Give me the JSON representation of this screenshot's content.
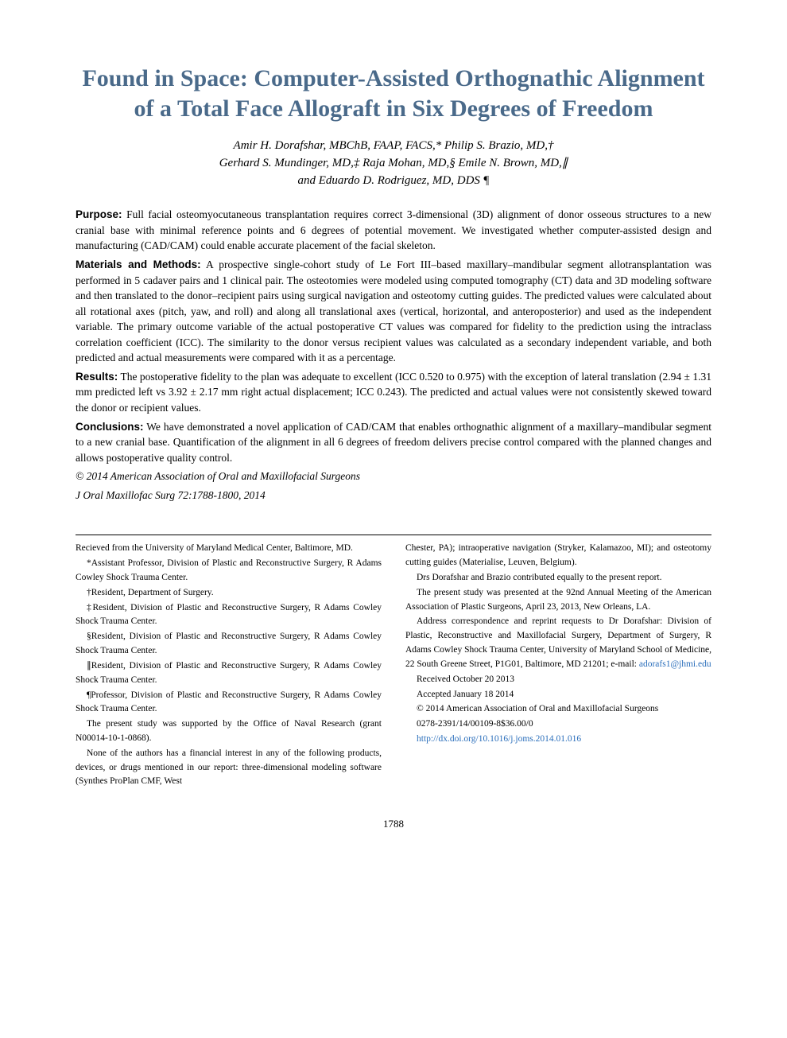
{
  "title": "Found in Space: Computer-Assisted Orthognathic Alignment of a Total Face Allograft in Six Degrees of Freedom",
  "authors_line1": "Amir H. Dorafshar, MBChB, FAAP, FACS,* Philip S. Brazio, MD,†",
  "authors_line2": "Gerhard S. Mundinger, MD,‡ Raja Mohan, MD,§ Emile N. Brown, MD,∥",
  "authors_line3": "and Eduardo D. Rodriguez, MD, DDS ¶",
  "abstract": {
    "purpose_label": "Purpose:",
    "purpose_text": "Full facial osteomyocutaneous transplantation requires correct 3-dimensional (3D) alignment of donor osseous structures to a new cranial base with minimal reference points and 6 degrees of potential movement. We investigated whether computer-assisted design and manufacturing (CAD/CAM) could enable accurate placement of the facial skeleton.",
    "methods_label": "Materials and Methods:",
    "methods_text": "A prospective single-cohort study of Le Fort III–based maxillary–mandibular segment allotransplantation was performed in 5 cadaver pairs and 1 clinical pair. The osteotomies were modeled using computed tomography (CT) data and 3D modeling software and then translated to the donor–recipient pairs using surgical navigation and osteotomy cutting guides. The predicted values were calculated about all rotational axes (pitch, yaw, and roll) and along all translational axes (vertical, horizontal, and anteroposterior) and used as the independent variable. The primary outcome variable of the actual postoperative CT values was compared for fidelity to the prediction using the intraclass correlation coefficient (ICC). The similarity to the donor versus recipient values was calculated as a secondary independent variable, and both predicted and actual measurements were compared with it as a percentage.",
    "results_label": "Results:",
    "results_text": "The postoperative fidelity to the plan was adequate to excellent (ICC 0.520 to 0.975) with the exception of lateral translation (2.94 ± 1.31 mm predicted left vs 3.92 ± 2.17 mm right actual displacement; ICC 0.243). The predicted and actual values were not consistently skewed toward the donor or recipient values.",
    "conclusions_label": "Conclusions:",
    "conclusions_text": "We have demonstrated a novel application of CAD/CAM that enables orthognathic alignment of a maxillary–mandibular segment to a new cranial base. Quantification of the alignment in all 6 degrees of freedom delivers precise control compared with the planned changes and allows postoperative quality control.",
    "copyright": "© 2014 American Association of Oral and Maxillofacial Surgeons",
    "citation": "J Oral Maxillofac Surg 72:1788-1800, 2014"
  },
  "footnotes": {
    "left": {
      "received": "Recieved from the University of Maryland Medical Center, Baltimore, MD.",
      "aff1": "*Assistant Professor, Division of Plastic and Reconstructive Surgery, R Adams Cowley Shock Trauma Center.",
      "aff2": "†Resident, Department of Surgery.",
      "aff3": "‡Resident, Division of Plastic and Reconstructive Surgery, R Adams Cowley Shock Trauma Center.",
      "aff4": "§Resident, Division of Plastic and Reconstructive Surgery, R Adams Cowley Shock Trauma Center.",
      "aff5": "∥Resident, Division of Plastic and Reconstructive Surgery, R Adams Cowley Shock Trauma Center.",
      "aff6": "¶Professor, Division of Plastic and Reconstructive Surgery, R Adams Cowley Shock Trauma Center.",
      "support": "The present study was supported by the Office of Naval Research (grant N00014-10-1-0868).",
      "coi": "None of the authors has a financial interest in any of the following products, devices, or drugs mentioned in our report: three-dimensional modeling software (Synthes ProPlan CMF, West"
    },
    "right": {
      "coi_cont": "Chester, PA); intraoperative navigation (Stryker, Kalamazoo, MI); and osteotomy cutting guides (Materialise, Leuven, Belgium).",
      "contrib": "Drs Dorafshar and Brazio contributed equally to the present report.",
      "presented": "The present study was presented at the 92nd Annual Meeting of the American Association of Plastic Surgeons, April 23, 2013, New Orleans, LA.",
      "correspondence": "Address correspondence and reprint requests to Dr Dorafshar: Division of Plastic, Reconstructive and Maxillofacial Surgery, Department of Surgery, R Adams Cowley Shock Trauma Center, University of Maryland School of Medicine, 22 South Greene Street, P1G01, Baltimore, MD 21201; e-mail: ",
      "email": "adorafs1@jhmi.edu",
      "recv": "Received October 20 2013",
      "acc": "Accepted January 18 2014",
      "copy": "© 2014 American Association of Oral and Maxillofacial Surgeons",
      "issn": "0278-2391/14/00109-8$36.00/0",
      "doi": "http://dx.doi.org/10.1016/j.joms.2014.01.016"
    }
  },
  "page_number": "1788",
  "colors": {
    "title": "#4a6a8a",
    "link": "#2a6ebb"
  }
}
